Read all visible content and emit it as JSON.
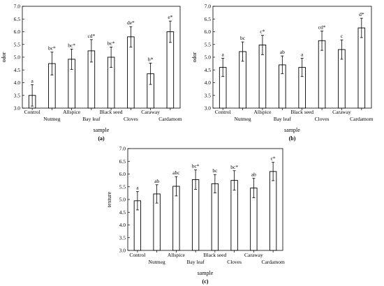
{
  "chart_data": [
    {
      "type": "bar",
      "caption": "(a)",
      "xlabel": "sample",
      "ylabel": "odor",
      "ylim": [
        3.0,
        7.0
      ],
      "yticks": [
        "3.0",
        "3.5",
        "4.0",
        "4.5",
        "5.0",
        "5.5",
        "6.0",
        "6.5",
        "7.0"
      ],
      "categories": [
        "Control",
        "Nutmeg",
        "Allspice",
        "Bay leaf",
        "Black seed",
        "Cloves",
        "Caraway",
        "Cardamom"
      ],
      "values": [
        3.5,
        4.75,
        4.92,
        5.25,
        5.0,
        5.8,
        4.35,
        6.0
      ],
      "error": [
        0.42,
        0.45,
        0.4,
        0.44,
        0.4,
        0.4,
        0.42,
        0.42
      ],
      "labels": [
        "a",
        "bc*",
        "bc*",
        "cd*",
        "bc*",
        "de*",
        "b*",
        "e*"
      ],
      "grid": false
    },
    {
      "type": "bar",
      "caption": "(b)",
      "xlabel": "sample",
      "ylabel": "odor",
      "ylim": [
        3.0,
        7.0
      ],
      "yticks": [
        "3.0",
        "3.5",
        "4.0",
        "4.5",
        "5.0",
        "5.5",
        "6.0",
        "6.5",
        "7.0"
      ],
      "categories": [
        "Control",
        "Nutmeg",
        "Allspice",
        "Bay leaf",
        "Black seed",
        "Cloves",
        "Caraway",
        "Cardamom"
      ],
      "values": [
        4.6,
        5.22,
        5.48,
        4.7,
        4.6,
        5.65,
        5.3,
        6.15
      ],
      "error": [
        0.36,
        0.38,
        0.38,
        0.35,
        0.36,
        0.38,
        0.38,
        0.38
      ],
      "labels": [
        "a",
        "bc",
        "c*",
        "ab",
        "a",
        "cd*",
        "c",
        "d*"
      ],
      "grid": false
    },
    {
      "type": "bar",
      "caption": "(c)",
      "xlabel": "sample",
      "ylabel": "texture",
      "ylim": [
        3.0,
        7.0
      ],
      "yticks": [
        "3.0",
        "3.5",
        "4.0",
        "4.5",
        "5.0",
        "5.5",
        "6.0",
        "6.5",
        "7.0"
      ],
      "categories": [
        "Control",
        "Nutmeg",
        "Allspice",
        "Bay leaf",
        "Black seed",
        "Cloves",
        "Caraway",
        "Cardamom"
      ],
      "values": [
        4.95,
        5.22,
        5.52,
        5.78,
        5.62,
        5.75,
        5.45,
        6.1
      ],
      "error": [
        0.36,
        0.36,
        0.38,
        0.38,
        0.36,
        0.38,
        0.38,
        0.36
      ],
      "labels": [
        "a",
        "ab",
        "abc",
        "bc*",
        "bc",
        "bc*",
        "ab",
        "c*"
      ],
      "grid": false
    }
  ]
}
